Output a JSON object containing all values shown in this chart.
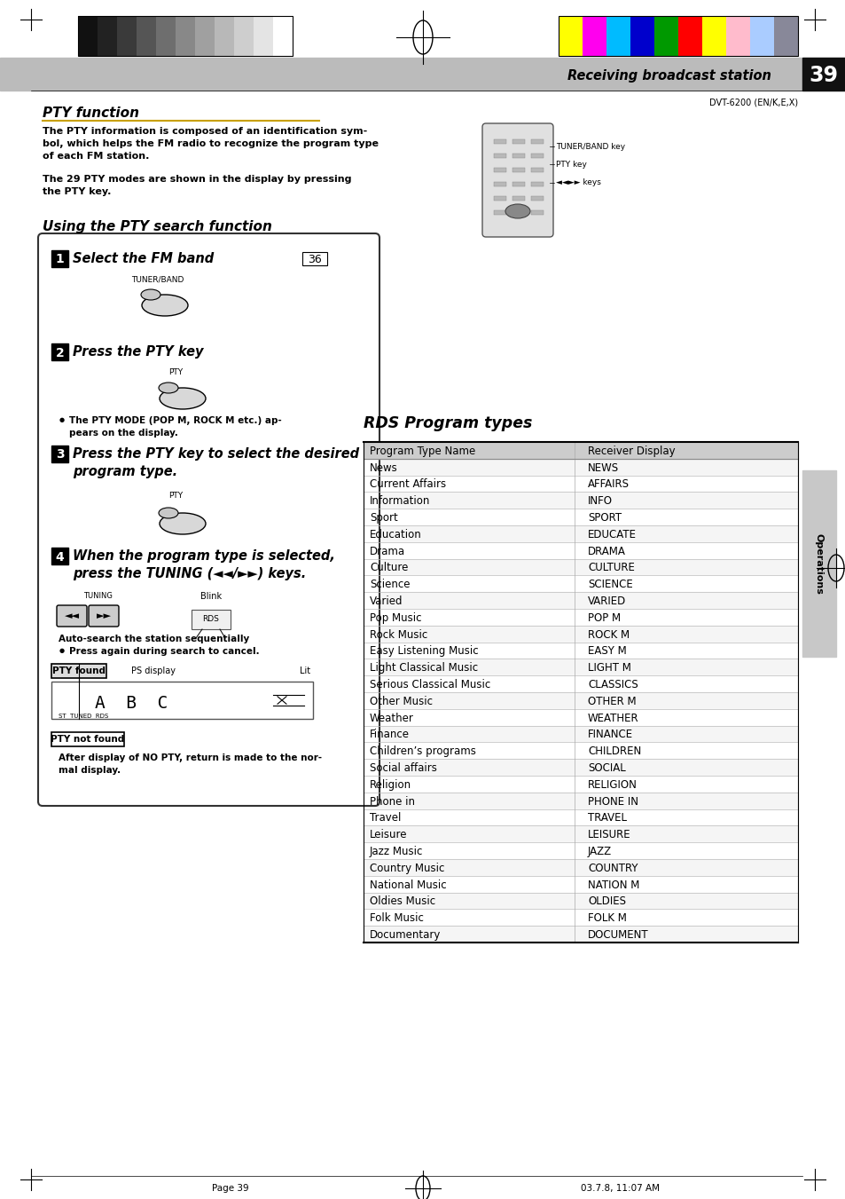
{
  "page_bg": "#ffffff",
  "header_bar_color": "#bbbbbb",
  "header_black_bar": "#111111",
  "header_text": "Receiving broadcast station",
  "header_page_num": "39",
  "subtitle_device": "DVT-6200 (EN/K,E,X)",
  "section1_title": "PTY function",
  "section1_body1": "The PTY information is composed of an identification sym-\nbol, which helps the FM radio to recognize the program type\nof each FM station.",
  "section1_body2": "The 29 PTY modes are shown in the display by pressing\nthe PTY key.",
  "section2_title": "Using the PTY search function",
  "step1_title": "Select the FM band",
  "step2_title": "Press the PTY key",
  "step2_bullet": "The PTY MODE (POP M, ROCK M etc.) ap-\npears on the display.",
  "step3_title": "Press the PTY key to select the desired\nprogram type.",
  "step4_title": "When the program type is selected,\npress the TUNING (◄◄/►►) keys.",
  "step4_sub1": "Auto-search the station sequentially",
  "step4_bullet": "Press again during search to cancel.",
  "pty_found_label": "PTY found",
  "ps_display_label": "PS display",
  "lit_label": "Lit",
  "pty_not_found_label": "PTY not found",
  "after_text": "After display of NO PTY, return is made to the nor-\nmal display.",
  "rds_title": "RDS Program types",
  "table_header_col1": "Program Type Name",
  "table_header_col2": "Receiver Display",
  "table_rows": [
    [
      "News",
      "NEWS"
    ],
    [
      "Current Affairs",
      "AFFAIRS"
    ],
    [
      "Information",
      "INFO"
    ],
    [
      "Sport",
      "SPORT"
    ],
    [
      "Education",
      "EDUCATE"
    ],
    [
      "Drama",
      "DRAMA"
    ],
    [
      "Culture",
      "CULTURE"
    ],
    [
      "Science",
      "SCIENCE"
    ],
    [
      "Varied",
      "VARIED"
    ],
    [
      "Pop Music",
      "POP M"
    ],
    [
      "Rock Music",
      "ROCK M"
    ],
    [
      "Easy Listening Music",
      "EASY M"
    ],
    [
      "Light Classical Music",
      "LIGHT M"
    ],
    [
      "Serious Classical Music",
      "CLASSICS"
    ],
    [
      "Other Music",
      "OTHER M"
    ],
    [
      "Weather",
      "WEATHER"
    ],
    [
      "Finance",
      "FINANCE"
    ],
    [
      "Children’s programs",
      "CHILDREN"
    ],
    [
      "Social affairs",
      "SOCIAL"
    ],
    [
      "Religion",
      "RELIGION"
    ],
    [
      "Phone in",
      "PHONE IN"
    ],
    [
      "Travel",
      "TRAVEL"
    ],
    [
      "Leisure",
      "LEISURE"
    ],
    [
      "Jazz Music",
      "JAZZ"
    ],
    [
      "Country Music",
      "COUNTRY"
    ],
    [
      "National Music",
      "NATION M"
    ],
    [
      "Oldies Music",
      "OLDIES"
    ],
    [
      "Folk Music",
      "FOLK M"
    ],
    [
      "Documentary",
      "DOCUMENT"
    ]
  ],
  "footer_left": "Page 39",
  "footer_right": "03.7.8, 11:07 AM",
  "operations_label": "Operations",
  "grayscale_colors": [
    "#111111",
    "#222222",
    "#3a3a3a",
    "#555555",
    "#6e6e6e",
    "#888888",
    "#a0a0a0",
    "#b8b8b8",
    "#cecece",
    "#e4e4e4",
    "#ffffff"
  ],
  "color_bars": [
    "#ffff00",
    "#ff00ee",
    "#00bbff",
    "#0000cc",
    "#009900",
    "#ff0000",
    "#ffff00",
    "#ffbbcc",
    "#aaccff",
    "#888899"
  ]
}
